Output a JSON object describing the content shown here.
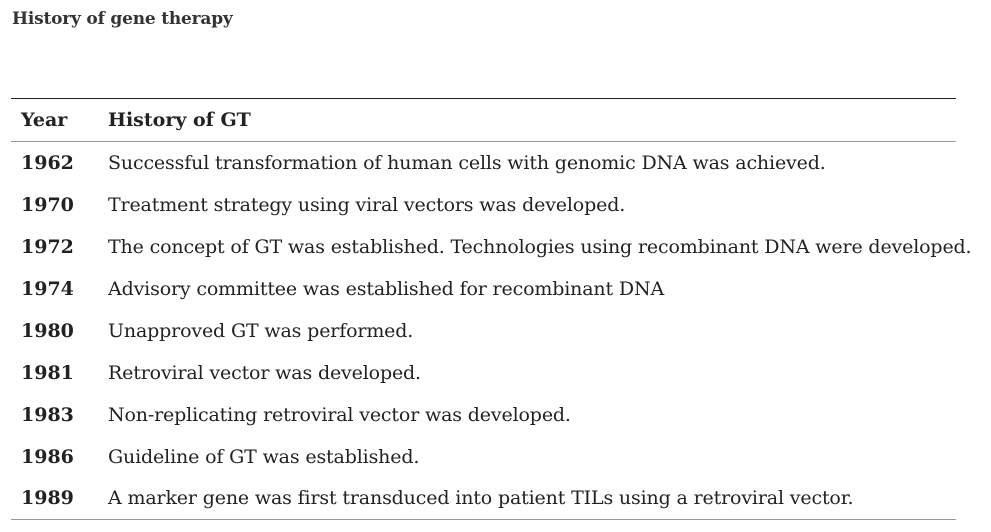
{
  "page": {
    "title": "History of gene therapy"
  },
  "table": {
    "headers": {
      "year": "Year",
      "history": "History of GT"
    },
    "rows": [
      {
        "year": "1962",
        "event": "Successful transformation of human cells with genomic DNA was achieved."
      },
      {
        "year": "1970",
        "event": "Treatment strategy using viral vectors was developed."
      },
      {
        "year": "1972",
        "event": "The concept of GT was established. Technologies using recombinant DNA were developed."
      },
      {
        "year": "1974",
        "event": "Advisory committee was established for recombinant DNA"
      },
      {
        "year": "1980",
        "event": "Unapproved GT was performed."
      },
      {
        "year": "1981",
        "event": "Retroviral vector was developed."
      },
      {
        "year": "1983",
        "event": "Non-replicating retroviral vector was developed."
      },
      {
        "year": "1986",
        "event": "Guideline of GT was established."
      },
      {
        "year": "1989",
        "event": "A marker gene was first transduced into patient TILs using a retroviral vector."
      }
    ]
  },
  "colors": {
    "text": "#222222",
    "title": "#333333",
    "rule_strong": "#222222",
    "rule_light": "#999999"
  }
}
